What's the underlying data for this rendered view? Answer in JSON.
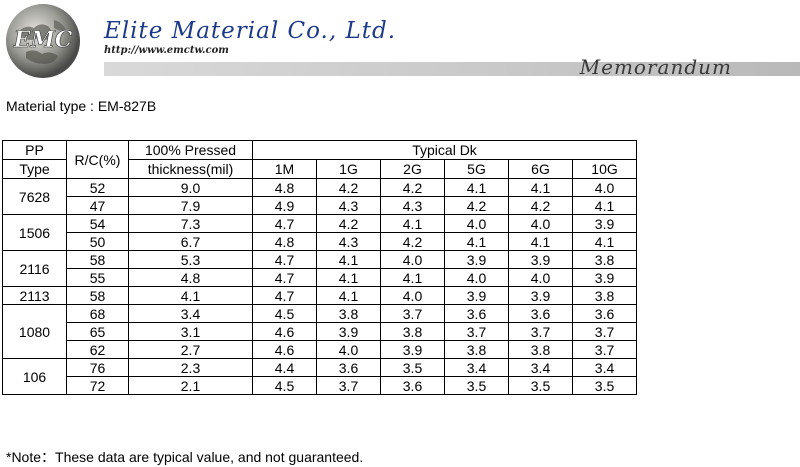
{
  "header": {
    "logo_text": "EMC",
    "company_name": "Elite Material Co., Ltd.",
    "url": "http://www.emctw.com",
    "memo_label": "Memorandum"
  },
  "material_type": "Material type : EM-827B",
  "table": {
    "headers": {
      "pp_type_line1": "PP",
      "pp_type_line2": "Type",
      "rc": "R/C(%)",
      "thickness_line1": "100% Pressed",
      "thickness_line2": "thickness(mil)",
      "typical_dk": "Typical Dk",
      "frequencies": [
        "1M",
        "1G",
        "2G",
        "5G",
        "6G",
        "10G"
      ]
    },
    "groups": [
      {
        "type": "7628",
        "rows": [
          {
            "rc": "52",
            "thickness": "9.0",
            "dk": [
              "4.8",
              "4.2",
              "4.2",
              "4.1",
              "4.1",
              "4.0"
            ]
          },
          {
            "rc": "47",
            "thickness": "7.9",
            "dk": [
              "4.9",
              "4.3",
              "4.3",
              "4.2",
              "4.2",
              "4.1"
            ]
          }
        ]
      },
      {
        "type": "1506",
        "rows": [
          {
            "rc": "54",
            "thickness": "7.3",
            "dk": [
              "4.7",
              "4.2",
              "4.1",
              "4.0",
              "4.0",
              "3.9"
            ]
          },
          {
            "rc": "50",
            "thickness": "6.7",
            "dk": [
              "4.8",
              "4.3",
              "4.2",
              "4.1",
              "4.1",
              "4.1"
            ]
          }
        ]
      },
      {
        "type": "2116",
        "rows": [
          {
            "rc": "58",
            "thickness": "5.3",
            "dk": [
              "4.7",
              "4.1",
              "4.0",
              "3.9",
              "3.9",
              "3.8"
            ]
          },
          {
            "rc": "55",
            "thickness": "4.8",
            "dk": [
              "4.7",
              "4.1",
              "4.1",
              "4.0",
              "4.0",
              "3.9"
            ]
          }
        ]
      },
      {
        "type": "2113",
        "rows": [
          {
            "rc": "58",
            "thickness": "4.1",
            "dk": [
              "4.7",
              "4.1",
              "4.0",
              "3.9",
              "3.9",
              "3.8"
            ]
          }
        ]
      },
      {
        "type": "1080",
        "rows": [
          {
            "rc": "68",
            "thickness": "3.4",
            "dk": [
              "4.5",
              "3.8",
              "3.7",
              "3.6",
              "3.6",
              "3.6"
            ]
          },
          {
            "rc": "65",
            "thickness": "3.1",
            "dk": [
              "4.6",
              "3.9",
              "3.8",
              "3.7",
              "3.7",
              "3.7"
            ]
          },
          {
            "rc": "62",
            "thickness": "2.7",
            "dk": [
              "4.6",
              "4.0",
              "3.9",
              "3.8",
              "3.8",
              "3.7"
            ]
          }
        ]
      },
      {
        "type": "106",
        "rows": [
          {
            "rc": "76",
            "thickness": "2.3",
            "dk": [
              "4.4",
              "3.6",
              "3.5",
              "3.4",
              "3.4",
              "3.4"
            ]
          },
          {
            "rc": "72",
            "thickness": "2.1",
            "dk": [
              "4.5",
              "3.7",
              "3.6",
              "3.5",
              "3.5",
              "3.5"
            ]
          }
        ]
      }
    ]
  },
  "note": "*Note：These data are typical value, and not guaranteed."
}
